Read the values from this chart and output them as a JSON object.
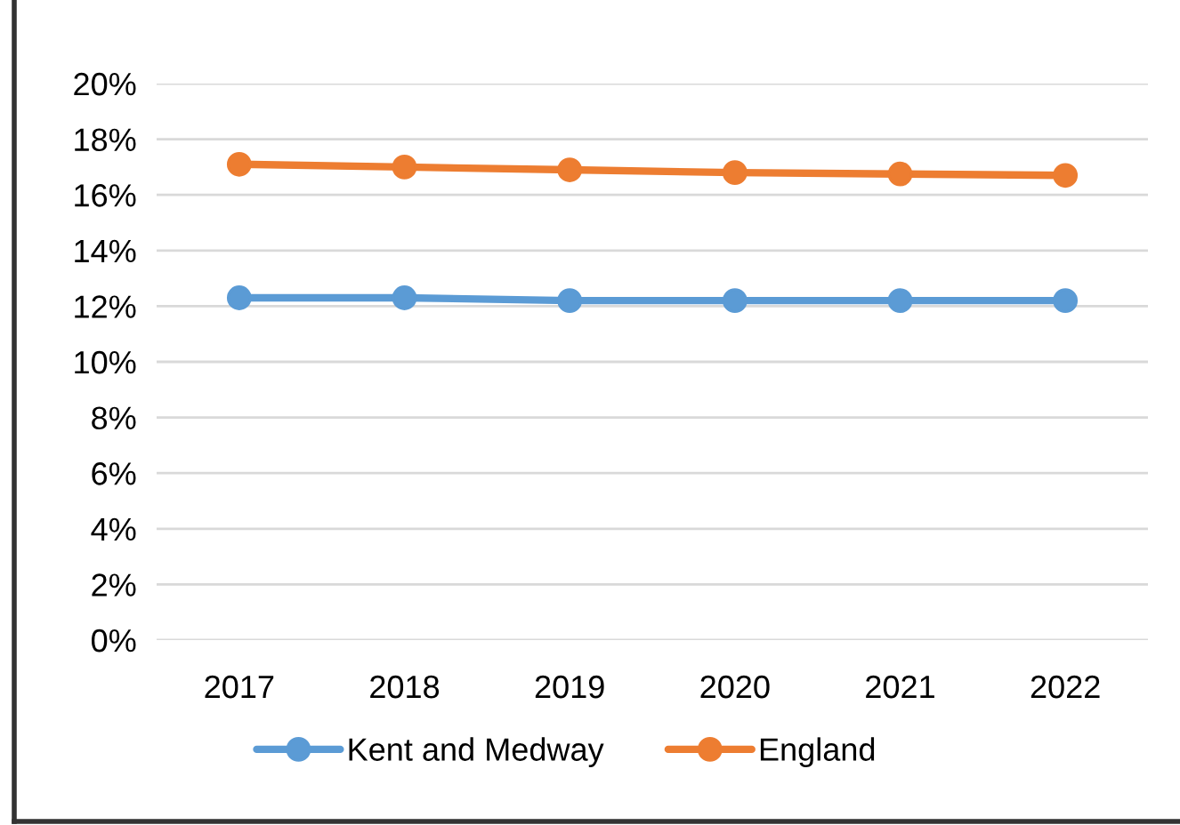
{
  "chart_data": {
    "type": "line",
    "categories": [
      "2017",
      "2018",
      "2019",
      "2020",
      "2021",
      "2022"
    ],
    "series": [
      {
        "name": "Kent and Medway",
        "color": "#5b9bd5",
        "values": [
          12.3,
          12.3,
          12.2,
          12.2,
          12.2,
          12.2
        ]
      },
      {
        "name": "England",
        "color": "#ed7d31",
        "values": [
          17.1,
          17.0,
          16.9,
          16.8,
          16.75,
          16.7
        ]
      }
    ],
    "ylim": [
      0,
      20
    ],
    "yticks": [
      {
        "value": 0,
        "label": "0%"
      },
      {
        "value": 2,
        "label": "2%"
      },
      {
        "value": 4,
        "label": "4%"
      },
      {
        "value": 6,
        "label": "6%"
      },
      {
        "value": 8,
        "label": "8%"
      },
      {
        "value": 10,
        "label": "10%"
      },
      {
        "value": 12,
        "label": "12%"
      },
      {
        "value": 14,
        "label": "14%"
      },
      {
        "value": 16,
        "label": "16%"
      },
      {
        "value": 18,
        "label": "18%"
      },
      {
        "value": 20,
        "label": "20%"
      }
    ],
    "grid": "y",
    "legend": "bottom",
    "marker": "circle",
    "line_style": "solid"
  }
}
